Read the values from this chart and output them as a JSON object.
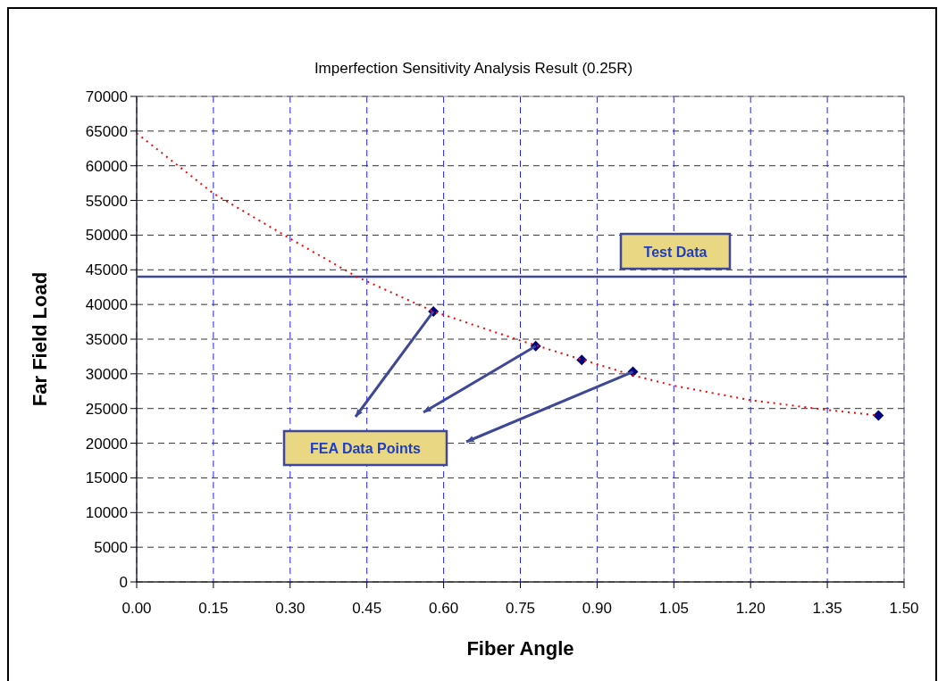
{
  "chart_data": {
    "type": "scatter",
    "title": "Imperfection Sensitivity Analysis Result (0.25R)",
    "xlabel": "Fiber Angle",
    "ylabel": "Far Field Load",
    "x": [
      0.58,
      0.78,
      0.87,
      0.97,
      1.45
    ],
    "series": [
      {
        "color": "#000080",
        "marker": "diamond",
        "values": [
          39000,
          34000,
          32000,
          30300,
          24000
        ]
      },
      {
        "type": "line",
        "color": "#ff0000",
        "line_style": "dotted",
        "marker": "none",
        "x": [
          0,
          0.15,
          0.3,
          0.43,
          0.58,
          0.75,
          0.97,
          1.05,
          1.2,
          1.35,
          1.45
        ],
        "values": [
          64700,
          56000,
          49500,
          44000,
          39000,
          34800,
          29800,
          28300,
          26200,
          24800,
          24000
        ]
      }
    ],
    "xlim": [
      0,
      1.5
    ],
    "xticks": [
      {
        "value": 0,
        "label": "0.00"
      },
      0.15,
      {
        "value": 0.3,
        "label": "0.30"
      },
      0.45,
      {
        "value": 0.6,
        "label": "0.60"
      },
      0.75,
      {
        "value": 0.9,
        "label": "0.90"
      },
      1.05,
      {
        "value": 1.2,
        "label": "1.20"
      },
      1.35,
      {
        "value": 1.5,
        "label": "1.50"
      }
    ],
    "ylim": [
      0,
      70000
    ],
    "yticks": [
      0,
      5000,
      10000,
      15000,
      20000,
      25000,
      30000,
      35000,
      40000,
      45000,
      50000,
      55000,
      60000,
      65000,
      70000
    ],
    "grid": true,
    "ref_lines": [
      {
        "axis": "y",
        "value": 44000,
        "label": "Test Data",
        "color": "#3f4896"
      }
    ],
    "annotations": [
      "FEA Data Points"
    ]
  }
}
